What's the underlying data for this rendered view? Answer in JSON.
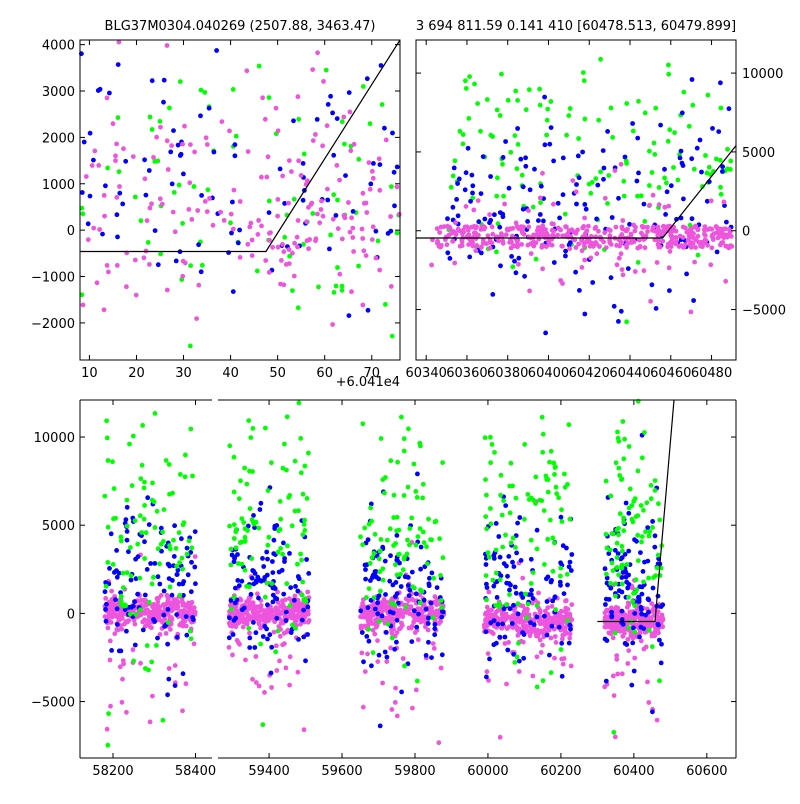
{
  "colors": {
    "green": "#00ff00",
    "blue": "#0000ff",
    "magenta": "#ee55dd",
    "model_line": "#000000"
  },
  "chart_data": [
    {
      "id": "top-left",
      "type": "scatter",
      "title": "BLG37M0304.040269 (2507.88, 3463.47)",
      "xlim": [
        8,
        76
      ],
      "ylim": [
        -2800,
        4100
      ],
      "xticks": [
        10,
        20,
        30,
        40,
        50,
        60,
        70
      ],
      "yticks": [
        -2000,
        -1000,
        0,
        1000,
        2000,
        3000,
        4000
      ],
      "offset_label": "+6.041e4",
      "model_line": {
        "x": [
          8,
          47.5,
          76
        ],
        "y": [
          -460,
          -460,
          4100
        ]
      },
      "clusters": [
        {
          "color": "green",
          "x": [
            8,
            76
          ],
          "y": [
            -2300,
            4100
          ],
          "n": 80
        },
        {
          "color": "blue",
          "x": [
            8,
            76
          ],
          "y": [
            -1800,
            4000
          ],
          "n": 95
        },
        {
          "color": "magenta",
          "x": [
            8,
            76
          ],
          "y": [
            -2700,
            4000
          ],
          "n": 160
        },
        {
          "color": "magenta",
          "x": [
            42,
            70
          ],
          "y": [
            -500,
            700
          ],
          "n": 40
        }
      ]
    },
    {
      "id": "top-right",
      "type": "scatter",
      "title": "3 694 811.59 0.141 410 [60478.513, 60479.899]",
      "xlim": [
        60335,
        60492
      ],
      "ylim": [
        -8200,
        12100
      ],
      "xticks": [
        60340,
        60360,
        60380,
        60400,
        60420,
        60440,
        60460,
        60480
      ],
      "yticks": [
        -5000,
        0,
        5000,
        10000
      ],
      "model_line": {
        "x": [
          60335,
          60456,
          60492
        ],
        "y": [
          -460,
          -460,
          5400
        ]
      },
      "clusters": [
        {
          "color": "green",
          "x": [
            60350,
            60490
          ],
          "y": [
            -2500,
            11500
          ],
          "n": 140
        },
        {
          "color": "blue",
          "x": [
            60350,
            60490
          ],
          "y": [
            -6500,
            9000
          ],
          "n": 170
        },
        {
          "color": "magenta",
          "x": [
            60345,
            60490
          ],
          "y": [
            -1100,
            300
          ],
          "n": 380
        },
        {
          "color": "magenta",
          "x": [
            60340,
            60490
          ],
          "y": [
            -4500,
            4000
          ],
          "n": 80
        }
      ]
    },
    {
      "id": "bottom",
      "type": "scatter",
      "broken_x_axis": true,
      "xlim": [
        58120,
        60680
      ],
      "ylim": [
        -8200,
        12100
      ],
      "xticks": [
        58200,
        58400,
        59400,
        59600,
        59800,
        60000,
        60200,
        60400,
        60600
      ],
      "yticks": [
        -5000,
        0,
        5000,
        10000
      ],
      "segments": [
        {
          "range": [
            58120,
            58440
          ]
        },
        {
          "range": [
            59260,
            60680
          ]
        }
      ],
      "model_line": {
        "x": [
          60300,
          60458,
          60510
        ],
        "y": [
          -460,
          -460,
          12100
        ]
      },
      "groups": [
        {
          "x": [
            58180,
            58400
          ]
        },
        {
          "x": [
            59290,
            59510
          ]
        },
        {
          "x": [
            59650,
            59880
          ]
        },
        {
          "x": [
            59990,
            60230
          ]
        },
        {
          "x": [
            60320,
            60480
          ]
        }
      ]
    }
  ]
}
